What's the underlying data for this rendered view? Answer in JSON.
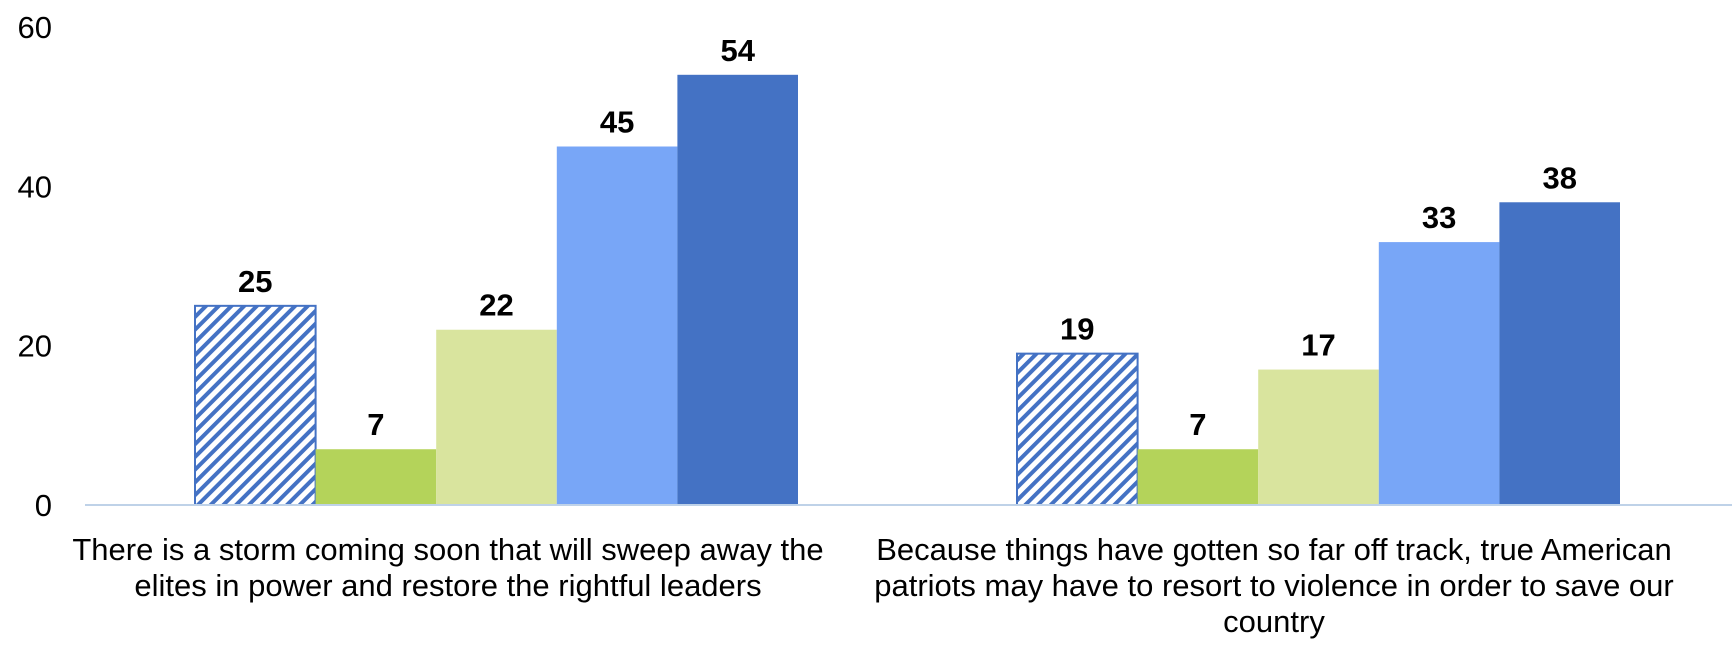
{
  "chart_data": {
    "type": "bar",
    "title": "",
    "xlabel": "",
    "ylabel": "",
    "ylim": [
      0,
      60
    ],
    "yticks": [
      0,
      20,
      40,
      60
    ],
    "grid": false,
    "legend": "none",
    "categories": [
      "There is a storm coming soon that will sweep away the elites in power and restore the rightful leaders",
      "Because things have gotten so far off track, true American patriots may have to resort to violence in order to save our country"
    ],
    "series": [
      {
        "values": [
          25,
          19
        ],
        "color": "#4472C4",
        "pattern": "diagonal-hatch"
      },
      {
        "values": [
          7,
          7
        ],
        "color": "#B4D35A"
      },
      {
        "values": [
          22,
          17
        ],
        "color": "#D9E49E"
      },
      {
        "values": [
          45,
          33
        ],
        "color": "#78A6F7"
      },
      {
        "values": [
          54,
          38
        ],
        "color": "#4472C4"
      }
    ]
  }
}
